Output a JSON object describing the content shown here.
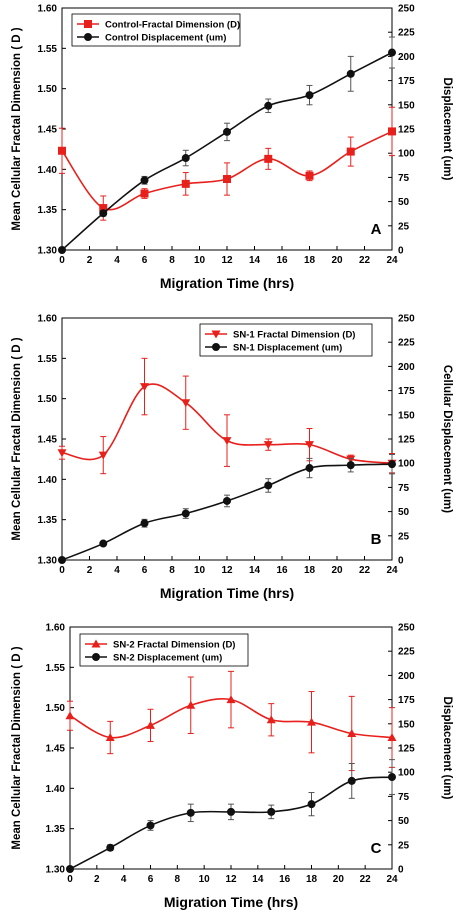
{
  "chart_data": [
    {
      "type": "line",
      "panel_label": "A",
      "xlabel": "Migration Time (hrs)",
      "ylabel_left": "Mean Cellular Fractal Dimension ( D )",
      "ylabel_right": "Displacement (um)",
      "x": [
        0,
        3,
        6,
        9,
        12,
        15,
        18,
        21,
        24
      ],
      "xlim": [
        0,
        24
      ],
      "xticks": [
        "0",
        "2",
        "4",
        "6",
        "8",
        "10",
        "12",
        "14",
        "16",
        "18",
        "20",
        "22",
        "24"
      ],
      "ylim_left": [
        1.3,
        1.6
      ],
      "yticks_left": [
        "1.30",
        "1.35",
        "1.40",
        "1.45",
        "1.50",
        "1.55",
        "1.60"
      ],
      "ylim_right": [
        0,
        250
      ],
      "yticks_right": [
        "0",
        "25",
        "50",
        "75",
        "100",
        "125",
        "150",
        "175",
        "200",
        "225",
        "250"
      ],
      "legend_position": "top-left",
      "series": [
        {
          "name": "Control-Fractal Dimension (D)",
          "axis": "left",
          "color": "#e8201c",
          "marker": "square",
          "values": [
            1.423,
            1.352,
            1.37,
            1.382,
            1.388,
            1.413,
            1.392,
            1.422,
            1.447
          ],
          "errors": [
            0.028,
            0.015,
            0.006,
            0.014,
            0.02,
            0.013,
            0.006,
            0.018,
            0.03
          ]
        },
        {
          "name": "Control Displacement (um)",
          "axis": "right",
          "color": "#111111",
          "marker": "circle",
          "values": [
            0,
            38,
            72,
            95,
            122,
            149,
            160,
            182,
            204
          ],
          "errors": [
            0,
            3,
            4,
            8,
            9,
            7,
            10,
            18,
            16
          ]
        }
      ]
    },
    {
      "type": "line",
      "panel_label": "B",
      "xlabel": "Migration Time (hrs)",
      "ylabel_left": "Mean Cellular  Fractal  Dimension ( D )",
      "ylabel_right": "Cellular Displacement (um)",
      "x": [
        0,
        3,
        6,
        9,
        12,
        15,
        18,
        21,
        24
      ],
      "xlim": [
        0,
        24
      ],
      "xticks": [
        "0",
        "2",
        "4",
        "6",
        "8",
        "10",
        "12",
        "14",
        "16",
        "18",
        "20",
        "22",
        "24"
      ],
      "ylim_left": [
        1.3,
        1.6
      ],
      "yticks_left": [
        "1.30",
        "1.35",
        "1.40",
        "1.45",
        "1.50",
        "1.55",
        "1.60"
      ],
      "ylim_right": [
        0,
        250
      ],
      "yticks_right": [
        "0",
        "25",
        "50",
        "75",
        "100",
        "125",
        "150",
        "175",
        "200",
        "225",
        "250"
      ],
      "legend_position": "top-right",
      "series": [
        {
          "name": "SN-1 Fractal Dimension (D)",
          "axis": "left",
          "color": "#e8201c",
          "marker": "triangle-down",
          "values": [
            1.433,
            1.43,
            1.515,
            1.495,
            1.448,
            1.443,
            1.443,
            1.425,
            1.42
          ],
          "errors": [
            0.008,
            0.023,
            0.035,
            0.033,
            0.032,
            0.007,
            0.02,
            0.005,
            0.012
          ]
        },
        {
          "name": "SN-1  Displacement (um)",
          "axis": "right",
          "color": "#111111",
          "marker": "circle",
          "values": [
            0,
            17,
            38,
            48,
            61,
            77,
            95,
            98,
            99
          ],
          "errors": [
            0,
            2,
            4,
            5,
            6,
            7,
            10,
            7,
            10
          ]
        }
      ]
    },
    {
      "type": "line",
      "panel_label": "C",
      "xlabel": "Migration Time (hrs)",
      "ylabel_left": "Mean Cellular Fractal Dimension ( D )",
      "ylabel_right": "Displacement (um)",
      "x": [
        0,
        3,
        6,
        9,
        12,
        15,
        18,
        21,
        24
      ],
      "xlim": [
        0,
        24
      ],
      "xticks": [
        "0",
        "2",
        "4",
        "6",
        "8",
        "10",
        "12",
        "14",
        "16",
        "18",
        "20",
        "22",
        "24"
      ],
      "ylim_left": [
        1.3,
        1.6
      ],
      "yticks_left": [
        "1.30",
        "1.35",
        "1.40",
        "1.45",
        "1.50",
        "1.55",
        "1.60"
      ],
      "ylim_right": [
        0,
        250
      ],
      "yticks_right": [
        "0",
        "25",
        "50",
        "75",
        "100",
        "125",
        "150",
        "175",
        "200",
        "225",
        "250"
      ],
      "legend_position": "top-left",
      "series": [
        {
          "name": "SN-2 Fractal Dimension (D)",
          "axis": "left",
          "color": "#e8201c",
          "marker": "triangle-up",
          "values": [
            1.49,
            1.463,
            1.478,
            1.503,
            1.51,
            1.485,
            1.482,
            1.468,
            1.463
          ],
          "errors": [
            0.018,
            0.02,
            0.02,
            0.035,
            0.035,
            0.02,
            0.038,
            0.046,
            0.037
          ]
        },
        {
          "name": "SN-2  Displacement (um)",
          "axis": "right",
          "color": "#111111",
          "marker": "circle",
          "values": [
            0,
            22,
            45,
            58,
            59,
            59,
            67,
            91,
            95
          ],
          "errors": [
            0,
            3,
            5,
            9,
            8,
            7,
            12,
            18,
            18
          ]
        }
      ]
    }
  ]
}
